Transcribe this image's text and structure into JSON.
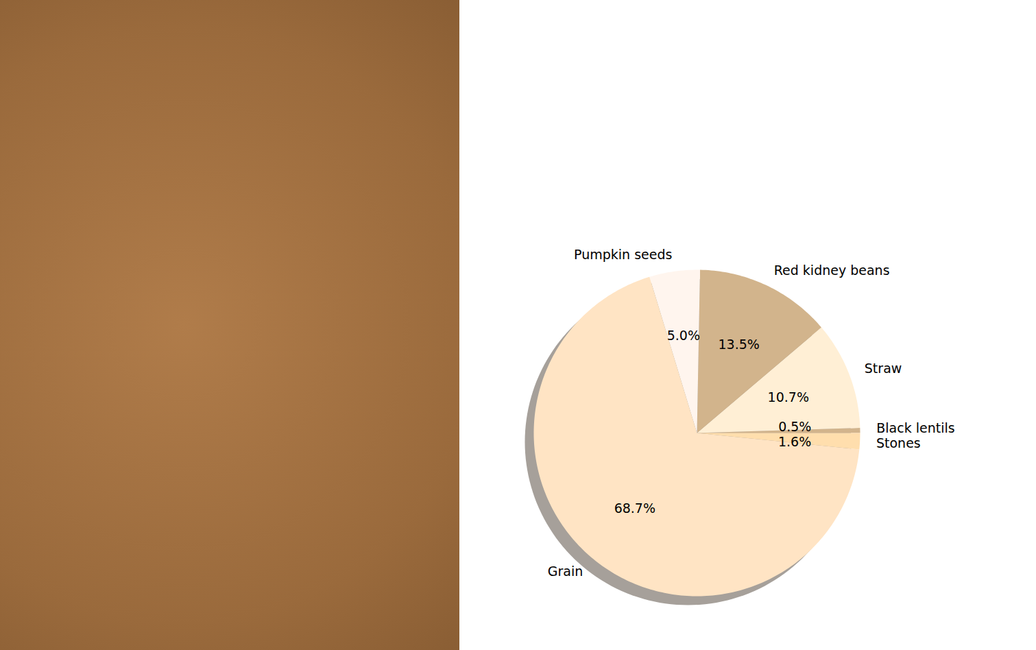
{
  "chart_data": {
    "type": "pie",
    "categories": [
      "Black lentils",
      "Straw",
      "Red kidney beans",
      "Pumpkin seeds",
      "Grain",
      "Stones"
    ],
    "values": [
      0.5,
      10.7,
      13.5,
      5.0,
      68.7,
      1.6
    ],
    "value_labels": [
      "0.5%",
      "10.7%",
      "13.5%",
      "5.0%",
      "68.7%",
      "1.6%"
    ],
    "colors": [
      "#d2b48c",
      "#ffefd5",
      "#d2b48c",
      "#fff5ee",
      "#ffe4c4",
      "#ffdead"
    ],
    "data_labels": true
  }
}
